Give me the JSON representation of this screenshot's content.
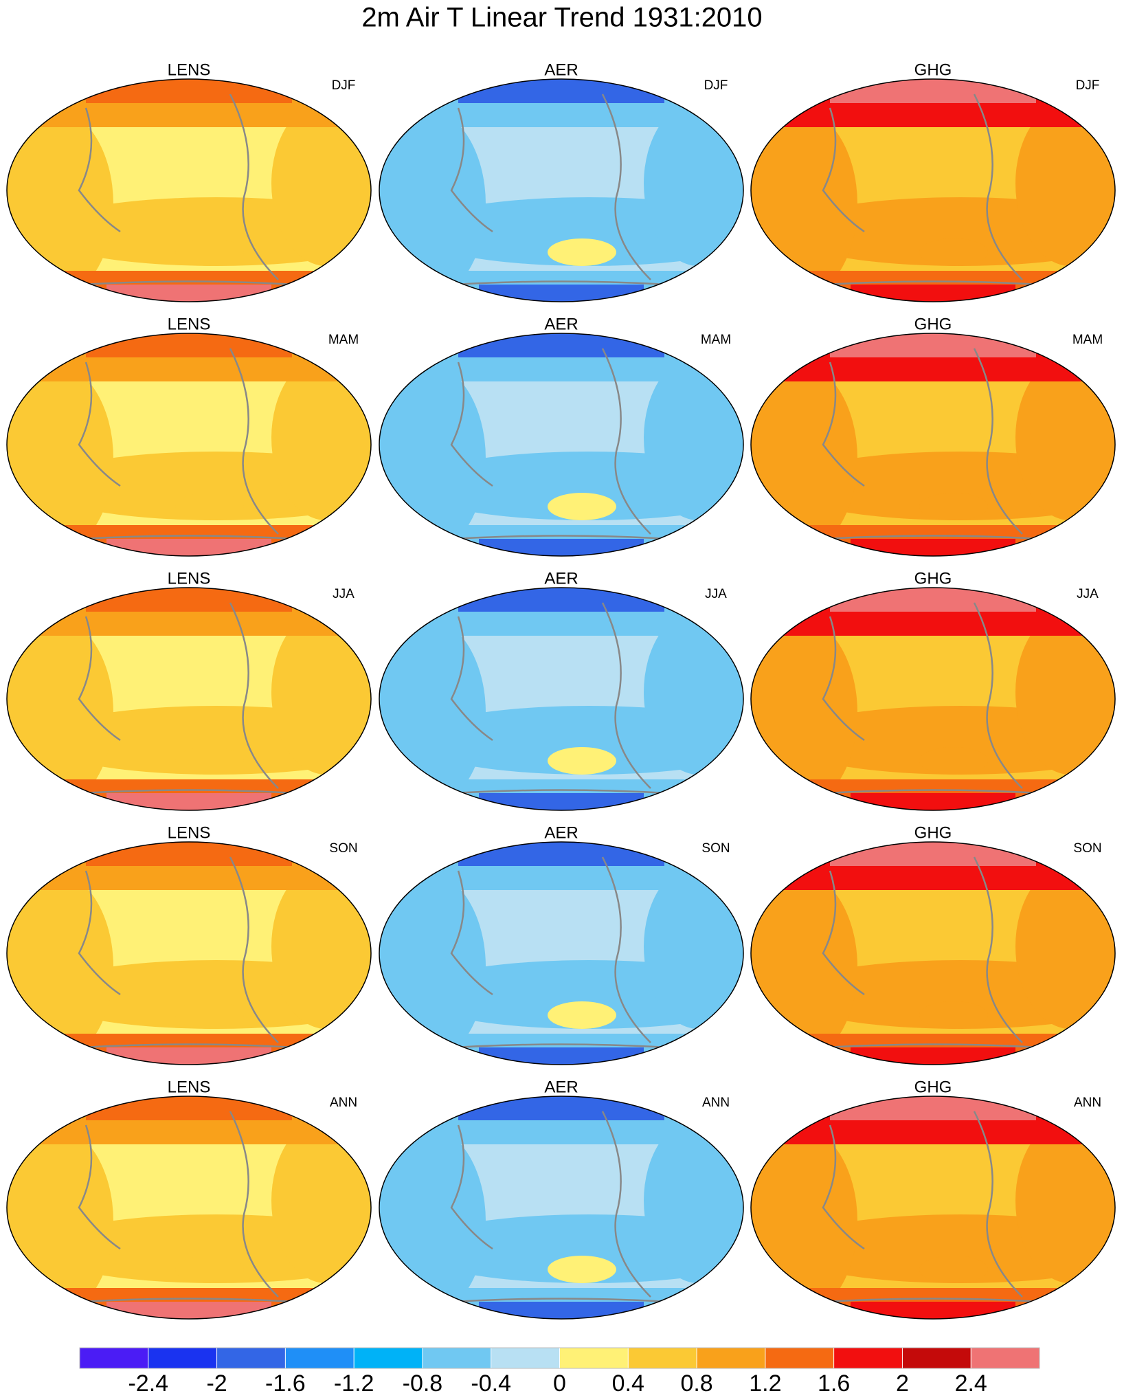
{
  "title": "2m Air T Linear Trend 1931:2010",
  "panels": [
    {
      "model": "LENS",
      "season": "DJF"
    },
    {
      "model": "AER",
      "season": "DJF"
    },
    {
      "model": "GHG",
      "season": "DJF"
    },
    {
      "model": "LENS",
      "season": "MAM"
    },
    {
      "model": "AER",
      "season": "MAM"
    },
    {
      "model": "GHG",
      "season": "MAM"
    },
    {
      "model": "LENS",
      "season": "JJA"
    },
    {
      "model": "AER",
      "season": "JJA"
    },
    {
      "model": "GHG",
      "season": "JJA"
    },
    {
      "model": "LENS",
      "season": "SON"
    },
    {
      "model": "AER",
      "season": "SON"
    },
    {
      "model": "GHG",
      "season": "SON"
    },
    {
      "model": "LENS",
      "season": "ANN"
    },
    {
      "model": "AER",
      "season": "ANN"
    },
    {
      "model": "GHG",
      "season": "ANN"
    }
  ],
  "colorbar": {
    "colors": [
      "#4b1cf5",
      "#1a33f0",
      "#3366e6",
      "#1f8ff7",
      "#00b2f7",
      "#70c8f2",
      "#b8e0f3",
      "#fff176",
      "#fbc934",
      "#f9a11b",
      "#f56a12",
      "#f20f0f",
      "#c40a0a",
      "#ef7374"
    ],
    "ticks": [
      -2.4,
      -2,
      -1.6,
      -1.2,
      -0.8,
      -0.4,
      0,
      0.4,
      0.8,
      1.2,
      1.6,
      2,
      2.4
    ]
  }
}
